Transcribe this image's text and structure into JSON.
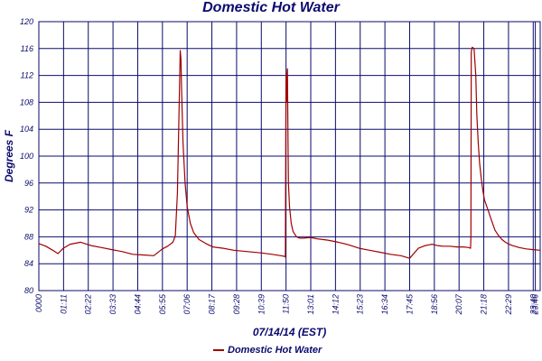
{
  "chart_data": {
    "type": "line",
    "title": "Domestic Hot Water",
    "xlabel": "07/14/14 (EST)",
    "ylabel": "Degrees F",
    "ylim": [
      80,
      120
    ],
    "yticks": [
      80,
      84,
      88,
      92,
      96,
      100,
      104,
      108,
      112,
      116,
      120
    ],
    "xlim": [
      0,
      1440
    ],
    "xtick_labels": [
      "0000",
      "01:11",
      "02:22",
      "03:33",
      "04:44",
      "05:55",
      "07:06",
      "08:17",
      "09:28",
      "10:39",
      "11:50",
      "13:01",
      "14:12",
      "15:23",
      "16:34",
      "17:45",
      "18:56",
      "20:07",
      "21:18",
      "22:29",
      "23:40",
      "23:46"
    ],
    "xtick_minutes": [
      0,
      71,
      142,
      213,
      284,
      355,
      426,
      497,
      568,
      639,
      710,
      781,
      852,
      923,
      994,
      1065,
      1136,
      1207,
      1278,
      1349,
      1420,
      1426
    ],
    "grid": true,
    "legend": "bottom-center",
    "series": [
      {
        "name": "Domestic Hot Water",
        "color": "#a00000",
        "x_minutes": [
          0,
          20,
          40,
          55,
          70,
          90,
          120,
          150,
          180,
          210,
          240,
          270,
          300,
          330,
          355,
          370,
          385,
          392,
          398,
          404,
          406,
          408,
          410,
          414,
          420,
          426,
          435,
          445,
          460,
          480,
          500,
          530,
          560,
          600,
          640,
          670,
          695,
          705,
          708,
          710,
          711,
          712,
          713,
          714,
          715,
          716,
          717,
          720,
          725,
          730,
          740,
          750,
          760,
          780,
          800,
          830,
          860,
          890,
          920,
          950,
          980,
          1010,
          1040,
          1065,
          1090,
          1110,
          1120,
          1130,
          1136,
          1145,
          1160,
          1180,
          1200,
          1220,
          1235,
          1240,
          1241,
          1242,
          1245,
          1250,
          1255,
          1258,
          1262,
          1266,
          1270,
          1275,
          1280,
          1290,
          1300,
          1310,
          1320,
          1330,
          1340,
          1350,
          1360,
          1380,
          1400,
          1420,
          1440
        ],
        "values": [
          87.0,
          86.6,
          86.0,
          85.5,
          86.3,
          86.9,
          87.2,
          86.7,
          86.4,
          86.1,
          85.8,
          85.4,
          85.3,
          85.2,
          86.2,
          86.6,
          87.2,
          88.2,
          94.5,
          110.0,
          115.7,
          114.5,
          110.0,
          102.0,
          96.0,
          92.5,
          90.0,
          88.6,
          87.6,
          87.0,
          86.5,
          86.3,
          86.0,
          85.8,
          85.6,
          85.4,
          85.2,
          85.1,
          85.0,
          112.0,
          110.0,
          108.0,
          112.5,
          113.0,
          106.0,
          100.0,
          96.0,
          92.5,
          90.0,
          88.8,
          88.0,
          87.8,
          87.8,
          87.9,
          87.7,
          87.5,
          87.2,
          86.8,
          86.3,
          86.0,
          85.7,
          85.4,
          85.2,
          84.8,
          86.3,
          86.7,
          86.8,
          86.9,
          86.8,
          86.7,
          86.6,
          86.6,
          86.5,
          86.5,
          86.4,
          86.3,
          88.0,
          115.5,
          116.2,
          116.0,
          112.0,
          106.0,
          102.0,
          99.0,
          97.0,
          95.0,
          93.5,
          92.0,
          90.5,
          89.0,
          88.2,
          87.6,
          87.2,
          86.9,
          86.7,
          86.4,
          86.2,
          86.1,
          86.0
        ]
      }
    ]
  },
  "legend": {
    "label": "Domestic Hot Water"
  }
}
